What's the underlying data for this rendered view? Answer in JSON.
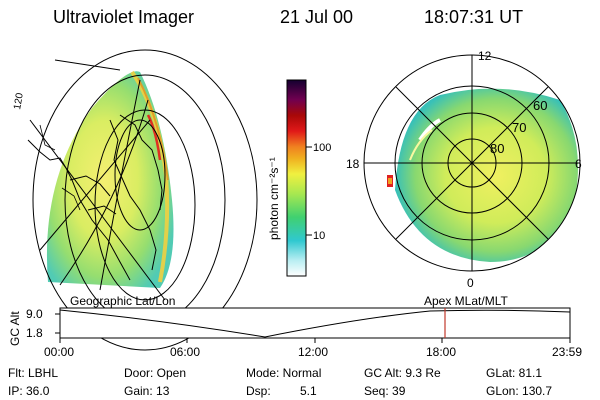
{
  "header": {
    "title": "Ultraviolet Imager",
    "date": "21 Jul 00",
    "time": "18:07:31 UT"
  },
  "colorbar": {
    "unit": "photon cm⁻²s⁻¹",
    "ticks": [
      "100",
      "10"
    ]
  },
  "polar": {
    "mlt": [
      "12",
      "18",
      "6",
      "0"
    ],
    "lat": [
      "60",
      "70",
      "80"
    ]
  },
  "geo_label": "Geographic Lat/Lon",
  "apex_label": "Apex MLat/MLT",
  "left_marks": [
    "120"
  ],
  "timeline": {
    "axis_label": "GC Alt",
    "alt_ticks": [
      "9.0",
      "1.8"
    ],
    "time_ticks": [
      "00:00",
      "06:00",
      "12:00",
      "18:00",
      "23:59"
    ]
  },
  "footer": {
    "filter": "Flt: LBHL",
    "door": "Door: Open",
    "mode": "Mode: Normal",
    "gc_alt": "GC Alt: 9.3 Re",
    "glat": "GLat: 81.1",
    "ip": "IP: 36.0",
    "gain": "Gain: 13",
    "dsp": "Dsp:",
    "dsp_val": "5.1",
    "seq": "Seq: 39",
    "glon": "GLon: 130.7"
  },
  "colors": {
    "accent_marker": "#c0392b",
    "glow_core": "#ffff30",
    "glow_edge": "#30c8a0"
  }
}
